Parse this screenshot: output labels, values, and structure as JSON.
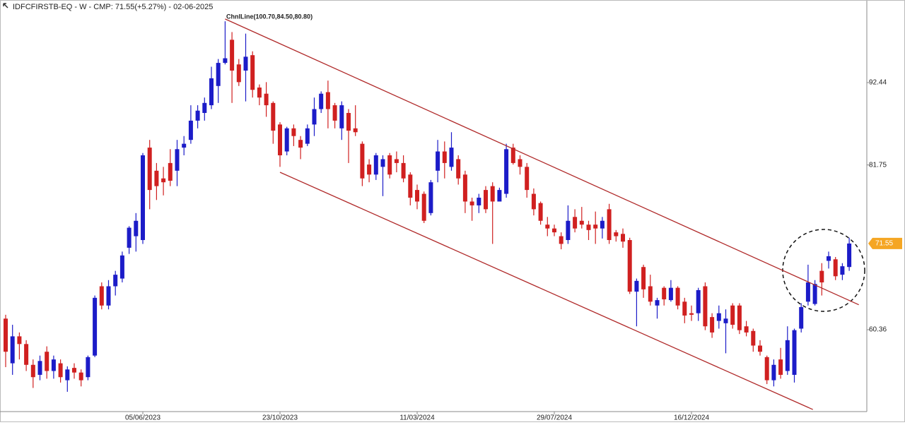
{
  "chart_data": {
    "type": "candlestick",
    "title": "IDFCFIRSTB-EQ - W - CMP: 71.55(+5.27%) - 02-06-2025",
    "annotation": "ChnlLine(100.70,84.50,80.80)",
    "categories": [
      null,
      null,
      null,
      null,
      null,
      null,
      null,
      null,
      null,
      null,
      null,
      null,
      null,
      null,
      null,
      null,
      null,
      null,
      null,
      null,
      "05/06/2023",
      null,
      null,
      null,
      null,
      null,
      null,
      null,
      null,
      null,
      null,
      null,
      null,
      null,
      null,
      null,
      null,
      null,
      null,
      null,
      "23/10/2023",
      null,
      null,
      null,
      null,
      null,
      null,
      null,
      null,
      null,
      null,
      null,
      null,
      null,
      null,
      null,
      null,
      null,
      null,
      null,
      "11/03/2024",
      null,
      null,
      null,
      null,
      null,
      null,
      null,
      null,
      null,
      null,
      null,
      null,
      null,
      null,
      null,
      null,
      null,
      null,
      null,
      "29/07/2024",
      null,
      null,
      null,
      null,
      null,
      null,
      null,
      null,
      null,
      null,
      null,
      null,
      null,
      null,
      null,
      null,
      null,
      null,
      null,
      "16/12/2024",
      null,
      null,
      null,
      null,
      null,
      null,
      null,
      null,
      null,
      null,
      null,
      null,
      null,
      null,
      null,
      null,
      null,
      null,
      null,
      null,
      null,
      null,
      null
    ],
    "open": [
      61.8,
      56,
      59.5,
      58.5,
      55.8,
      54.5,
      57.5,
      55,
      56,
      53.8,
      55.4,
      54.8,
      54.2,
      57,
      66,
      63.5,
      66,
      67,
      71,
      72.5,
      72,
      84,
      81,
      80,
      82,
      81,
      84,
      85,
      87.5,
      88.5,
      89.5,
      92,
      95,
      98,
      94.8,
      94,
      96,
      91.8,
      91,
      89.8,
      87,
      83.5,
      86.5,
      85,
      84.5,
      87,
      89,
      91.2,
      89.5,
      86.5,
      88.5,
      86.5,
      84.5,
      81.8,
      80.5,
      81.5,
      83,
      82.5,
      82,
      80.5,
      78.5,
      78,
      75.5,
      81,
      83.5,
      81.5,
      82.5,
      80.5,
      77,
      76.5,
      78.5,
      79,
      77,
      78,
      84,
      82.5,
      81.5,
      78,
      76.8,
      74,
      73.5,
      72.5,
      72,
      75,
      74.5,
      74,
      74,
      73.5,
      76,
      73,
      72.8,
      72,
      65.3,
      68.5,
      66,
      63.5,
      65.8,
      64.2,
      65.8,
      64,
      62.5,
      62.5,
      66,
      62,
      61.5,
      61.2,
      63.5,
      63.5,
      60.8,
      60.2,
      58.3,
      56.8,
      53.8,
      56.5,
      55,
      54.5,
      60.5,
      64,
      63.7,
      68,
      69.3,
      69.5,
      67.5,
      68.5
    ],
    "high": [
      62.3,
      61,
      60,
      59,
      56.5,
      57,
      58.2,
      57,
      56.5,
      55.6,
      56,
      55.2,
      57,
      64.8,
      66.5,
      66.8,
      68,
      70.5,
      73.8,
      75.5,
      83.3,
      85,
      82,
      81.5,
      83.8,
      85,
      85.5,
      89.5,
      89.5,
      90.5,
      94.5,
      95.5,
      100.4,
      99,
      95.5,
      98.8,
      96.5,
      92.2,
      92.5,
      90,
      87.3,
      86.7,
      87,
      85.5,
      87,
      90.5,
      91.3,
      92.7,
      89.8,
      90,
      89,
      89.5,
      84.8,
      82.5,
      83.3,
      83,
      83.3,
      83.5,
      83,
      80.8,
      79.2,
      78.3,
      79.8,
      85,
      84.8,
      86,
      83,
      81,
      77.5,
      78,
      79,
      79.5,
      78.8,
      84.5,
      84.5,
      83,
      82,
      78.7,
      77,
      75,
      74,
      73,
      76.5,
      76,
      76.3,
      74.5,
      75.7,
      75,
      76.7,
      73.3,
      73.5,
      72.3,
      67,
      68.8,
      67.5,
      64.5,
      66,
      66.8,
      66,
      64.5,
      63.5,
      65.8,
      66.5,
      62.5,
      63.5,
      63,
      63.8,
      63.8,
      61.5,
      60.5,
      59,
      57,
      56.5,
      58,
      60.8,
      60.5,
      63.8,
      68.8,
      66.8,
      69,
      70.5,
      69.8,
      69,
      72.3
    ],
    "low": [
      55.5,
      54.5,
      56.5,
      55,
      52.8,
      53.8,
      54,
      54,
      53.5,
      52.3,
      54,
      53,
      53.8,
      56.8,
      63,
      63,
      64.8,
      66.5,
      70.2,
      70.5,
      71.5,
      76,
      77.2,
      77.8,
      79,
      79,
      83,
      84.5,
      86.5,
      87.5,
      89,
      89.8,
      94.8,
      89.8,
      92,
      90,
      90.5,
      89.5,
      88,
      84.5,
      81.5,
      83,
      84.2,
      82.5,
      84.2,
      85.5,
      88.5,
      86.5,
      86.5,
      85,
      82,
      85.5,
      79,
      79.5,
      79.8,
      77.7,
      80,
      80.8,
      79.5,
      76.5,
      76,
      74.2,
      75.2,
      79.5,
      80,
      81,
      79.2,
      75.5,
      74.5,
      75.5,
      75.5,
      71.5,
      77.2,
      77.5,
      81.8,
      80.5,
      77.5,
      75.2,
      74,
      72.5,
      72.5,
      70.8,
      71.5,
      73,
      73.5,
      72,
      71.5,
      72.2,
      71.5,
      71.8,
      71,
      65,
      60.8,
      64.5,
      63.5,
      61.8,
      63.5,
      64,
      63,
      61.2,
      61.5,
      61.5,
      60.3,
      59.3,
      60.5,
      57.3,
      60.5,
      59.8,
      59.5,
      57.5,
      57,
      53.3,
      53,
      54,
      54.5,
      53.5,
      60,
      63.5,
      63.5,
      64.8,
      68.3,
      66.8,
      66.8,
      68
    ],
    "close": [
      57.5,
      59.5,
      58.5,
      55.8,
      54.2,
      56.3,
      55,
      56.5,
      54.2,
      55.2,
      54.8,
      53.8,
      56.8,
      64.5,
      63.5,
      66,
      67.5,
      70,
      73.6,
      74.5,
      83,
      78.5,
      79,
      79.5,
      79.7,
      83.8,
      84.5,
      87.5,
      88.8,
      89.8,
      93,
      95,
      95.6,
      94,
      92.5,
      95.8,
      91.5,
      90.5,
      89.5,
      86.2,
      83,
      86.5,
      85.5,
      84,
      86.5,
      89,
      91,
      89,
      87.5,
      89.5,
      86.2,
      86,
      80,
      80.5,
      83,
      82.5,
      80.5,
      82,
      80,
      77.5,
      77,
      74.5,
      79.5,
      83.5,
      82,
      84,
      80,
      77,
      76.5,
      77.5,
      76,
      77,
      78.5,
      83.8,
      82,
      81.5,
      78.5,
      76,
      74.5,
      73.5,
      73,
      71.5,
      74.5,
      73.5,
      74,
      73.3,
      73.5,
      74.5,
      72,
      72.5,
      71.8,
      65.3,
      66.7,
      65.6,
      64,
      64.2,
      64.3,
      65.8,
      63.5,
      62.2,
      62.3,
      65.5,
      60.8,
      60,
      62.5,
      61.8,
      61,
      60.3,
      60,
      58.3,
      57.5,
      53.8,
      55.8,
      54.5,
      59,
      60.3,
      63.3,
      66.5,
      66.3,
      66.5,
      69.9,
      67.3,
      68.6,
      71.55
    ],
    "up_color": "#1c1cc8",
    "down_color": "#d02020",
    "trendlines": [
      {
        "x": [
          32,
          124.4
        ],
        "y": [
          100.7,
          63.6
        ]
      },
      {
        "x": [
          40,
          117.7
        ],
        "y": [
          80.8,
          50.0
        ]
      }
    ],
    "trendline_color": "#b02a2a",
    "ylim": [
      49.73,
      102.98
    ],
    "yticks": [
      92.44,
      81.75,
      60.36
    ],
    "price_tag_color": "#f5a623"
  }
}
